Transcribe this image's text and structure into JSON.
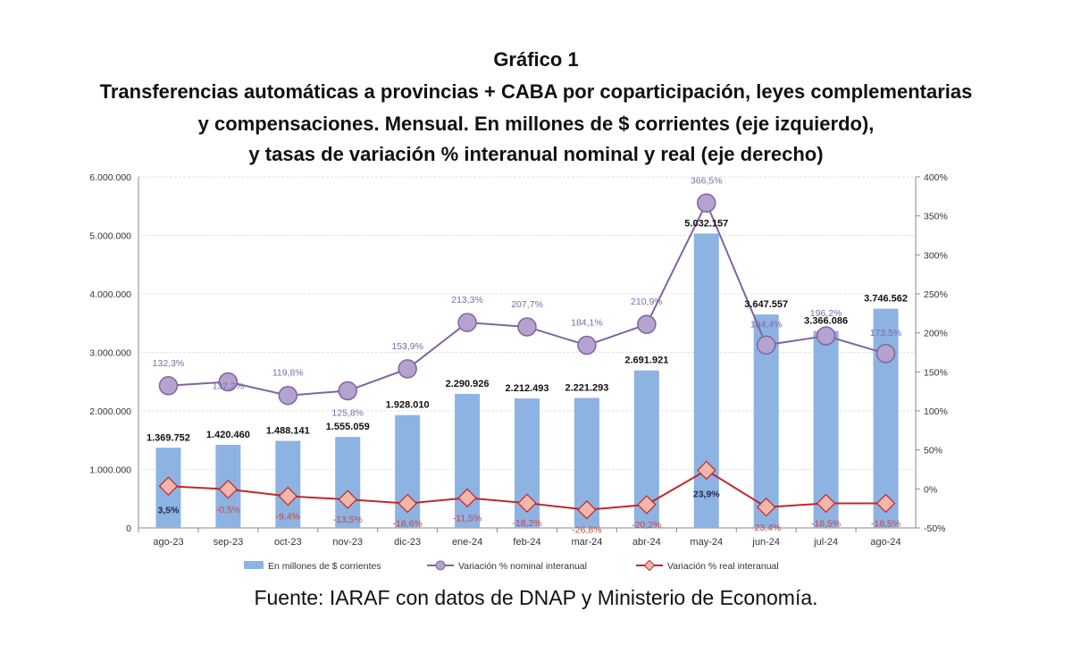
{
  "chart_data": {
    "type": "bar+line",
    "title_lines": [
      "Gráfico 1",
      "Transferencias automáticas a provincias + CABA por coparticipación, leyes complementarias",
      "y compensaciones. Mensual. En millones de $ corrientes (eje izquierdo),",
      "y tasas de variación % interanual nominal y real (eje derecho)"
    ],
    "categories": [
      "ago-23",
      "sep-23",
      "oct-23",
      "nov-23",
      "dic-23",
      "ene-24",
      "feb-24",
      "mar-24",
      "abr-24",
      "may-24",
      "jun-24",
      "jul-24",
      "ago-24"
    ],
    "series": [
      {
        "name": "En millones de $ corrientes",
        "axis": "left",
        "kind": "bar",
        "color": "#8db3e2",
        "values": [
          1369752,
          1420460,
          1488141,
          1555059,
          1928010,
          2290926,
          2212493,
          2221293,
          2691921,
          5032157,
          3647557,
          3366086,
          3746562
        ],
        "labels": [
          "1.369.752",
          "1.420.460",
          "1.488.141",
          "1.555.059",
          "1.928.010",
          "2.290.926",
          "2.212.493",
          "2.221.293",
          "2.691.921",
          "5.032.157",
          "3.647.557",
          "3.366.086",
          "3.746.562"
        ]
      },
      {
        "name": "Variación % nominal interanual",
        "axis": "right",
        "kind": "line",
        "color": "#8064a2",
        "values": [
          132.3,
          137.2,
          119.8,
          125.8,
          153.9,
          213.3,
          207.7,
          184.1,
          210.9,
          366.5,
          184.4,
          196.2,
          173.5
        ],
        "labels": [
          "132,3%",
          "137,2%",
          "119,8%",
          "125,8%",
          "153,9%",
          "213,3%",
          "207,7%",
          "184,1%",
          "210,9%",
          "366,5%",
          "184,4%",
          "196,2%",
          "173,5%"
        ]
      },
      {
        "name": "Variación % real interanual",
        "axis": "right",
        "kind": "line",
        "color": "#c0282d",
        "values": [
          3.5,
          -0.5,
          -9.4,
          -13.5,
          -18.6,
          -11.5,
          -18.2,
          -26.8,
          -20.2,
          23.9,
          -23.4,
          -18.5,
          -18.5
        ],
        "labels": [
          "3,5%",
          "-0,5%",
          "-9,4%",
          "-13,5%",
          "-18,6%",
          "-11,5%",
          "-18,2%",
          "-26,8%",
          "-20,2%",
          "23,9%",
          "-23,4%",
          "-18,5%",
          "-18,5%"
        ]
      }
    ],
    "left_axis": {
      "range": [
        0,
        6000000
      ],
      "ticks": [
        "0",
        "1.000.000",
        "2.000.000",
        "3.000.000",
        "4.000.000",
        "5.000.000",
        "6.000.000"
      ]
    },
    "right_axis": {
      "range": [
        -50,
        400
      ],
      "ticks": [
        "-50%",
        "0%",
        "50%",
        "100%",
        "150%",
        "200%",
        "250%",
        "300%",
        "350%",
        "400%"
      ]
    },
    "grid": true,
    "legend_position": "bottom"
  },
  "source": "Fuente: IARAF con datos de DNAP y Ministerio de Economía."
}
